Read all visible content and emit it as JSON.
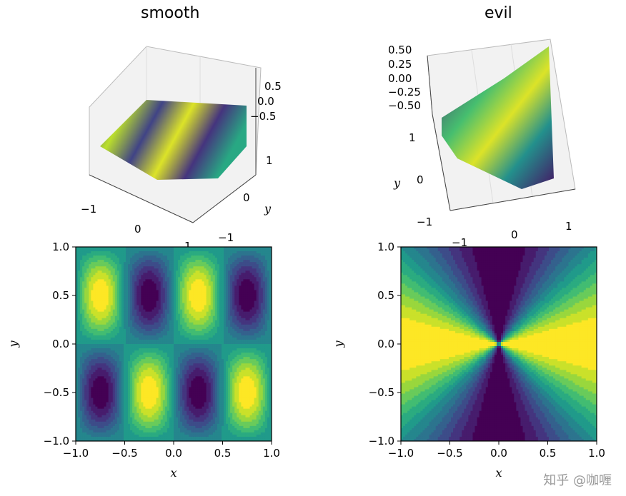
{
  "chart_data": [
    {
      "type": "surface3d",
      "title": "smooth",
      "function": "z = sin(2πx)·sin(πy)",
      "x_ticks": [
        "−1",
        "0",
        "1"
      ],
      "y_ticks": [
        "−1",
        "0",
        "1"
      ],
      "z_ticks": [
        "0.5",
        "0.0",
        "−0.5"
      ],
      "ylabel": "y",
      "colormap": "viridis"
    },
    {
      "type": "surface3d",
      "title": "evil",
      "function": "z = 0.5·cos(2θ), θ = polar angle",
      "x_ticks": [
        "−1",
        "0",
        "1"
      ],
      "y_ticks": [
        "−1",
        "0",
        "1"
      ],
      "z_ticks": [
        "0.50",
        "0.25",
        "0.00",
        "−0.25",
        "−0.50"
      ],
      "ylabel": "y",
      "colormap": "viridis"
    },
    {
      "type": "heatmap",
      "subtype": "filled-contour",
      "function": "z = sin(2πx)·sin(πy)",
      "xlim": [
        -1.0,
        1.0
      ],
      "ylim": [
        -1.0,
        1.0
      ],
      "x_ticks": [
        "−1.0",
        "−0.5",
        "0.0",
        "0.5",
        "1.0"
      ],
      "y_ticks": [
        "1.0",
        "0.5",
        "0.0",
        "−0.5",
        "−1.0"
      ],
      "xlabel": "x",
      "ylabel": "y",
      "colormap": "viridis"
    },
    {
      "type": "heatmap",
      "subtype": "filled-contour",
      "function": "z = 0.5·cos(2θ), θ = polar angle",
      "xlim": [
        -1.0,
        1.0
      ],
      "ylim": [
        -1.0,
        1.0
      ],
      "x_ticks": [
        "−1.0",
        "−0.5",
        "0.0",
        "0.5",
        "1.0"
      ],
      "y_ticks": [
        "1.0",
        "0.5",
        "0.0",
        "−0.5",
        "−1.0"
      ],
      "xlabel": "x",
      "ylabel": "y",
      "colormap": "viridis"
    }
  ],
  "watermark": "知乎 @咖喱"
}
